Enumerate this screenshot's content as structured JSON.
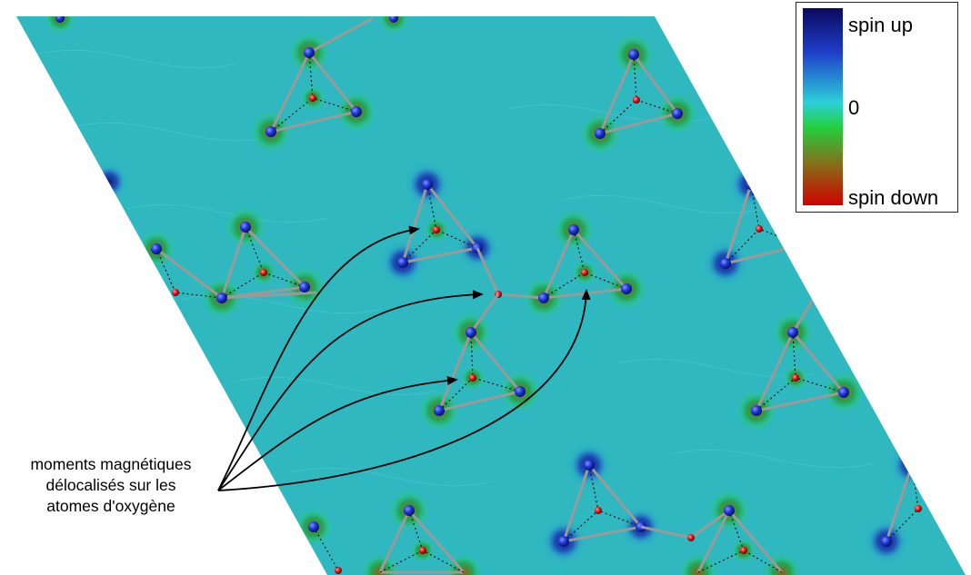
{
  "legend": {
    "top_label": "spin up",
    "mid_label": "0",
    "bottom_label": "spin down",
    "gradient_colors": [
      "#0a0a5e",
      "#1e3cc8",
      "#2cd0d8",
      "#22d040",
      "#8a6a18",
      "#d00000"
    ]
  },
  "annotation": {
    "lines": [
      "moments magnétiques",
      "délocalisés sur les",
      "atomes d'oxygène"
    ]
  },
  "colors": {
    "background": "#2fb8bf",
    "metal_atom": "#1a33d6",
    "oxygen_atom": "#e01010",
    "bond": "#9a9a9a",
    "arrow": "#000000"
  }
}
